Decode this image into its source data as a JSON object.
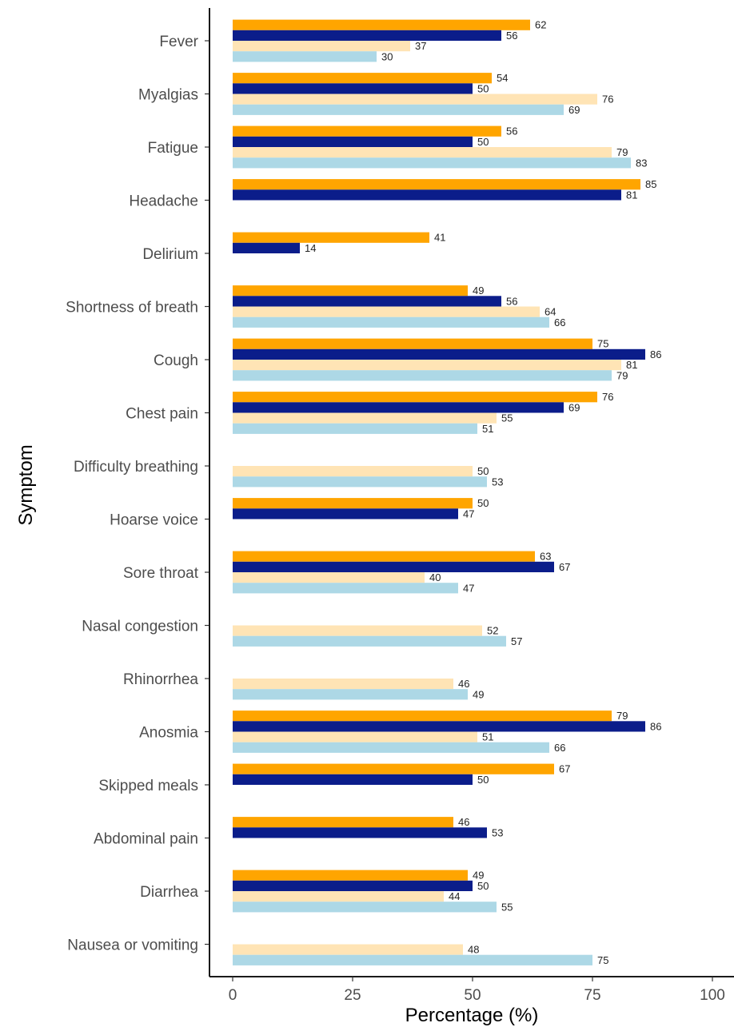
{
  "chart_data": {
    "type": "bar",
    "orientation": "horizontal",
    "xlabel": "Percentage (%)",
    "ylabel": "Symptom",
    "xlim": [
      0,
      100
    ],
    "xticks": [
      0,
      25,
      50,
      75,
      100
    ],
    "grid": false,
    "legend": "none",
    "categories": [
      "Fever",
      "Myalgias",
      "Fatigue",
      "Headache",
      "Delirium",
      "Shortness of breath",
      "Cough",
      "Chest pain",
      "Difficulty breathing",
      "Hoarse voice",
      "Sore throat",
      "Nasal congestion",
      "Rhinorrhea",
      "Anosmia",
      "Skipped meals",
      "Abdominal pain",
      "Diarrhea",
      "Nausea or vomiting"
    ],
    "series": [
      {
        "color": "#FFA500",
        "values": [
          62,
          54,
          56,
          85,
          41,
          49,
          75,
          76,
          null,
          50,
          63,
          null,
          null,
          79,
          67,
          46,
          49,
          null
        ]
      },
      {
        "color": "#0B1D8A",
        "values": [
          56,
          50,
          50,
          81,
          14,
          56,
          86,
          69,
          null,
          47,
          67,
          null,
          null,
          86,
          50,
          53,
          50,
          null
        ]
      },
      {
        "color": "#FFE4B5",
        "values": [
          37,
          76,
          79,
          null,
          null,
          64,
          81,
          55,
          50,
          null,
          40,
          52,
          46,
          51,
          null,
          null,
          44,
          48
        ]
      },
      {
        "color": "#ADD8E6",
        "values": [
          30,
          69,
          83,
          null,
          null,
          66,
          79,
          51,
          53,
          null,
          47,
          57,
          49,
          66,
          null,
          null,
          55,
          75
        ]
      }
    ]
  }
}
